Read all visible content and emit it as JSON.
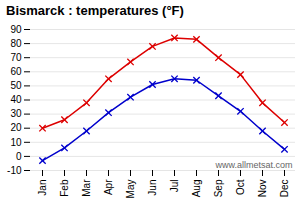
{
  "chart_data": {
    "type": "line",
    "title": "Bismarck : temperatures (°F)",
    "categories": [
      "Jan",
      "Feb",
      "Mar",
      "Apr",
      "May",
      "Jun",
      "Jul",
      "Aug",
      "Sep",
      "Oct",
      "Nov",
      "Dec"
    ],
    "series": [
      {
        "color": "#dd0000",
        "marker": "x",
        "values": [
          20,
          26,
          38,
          55,
          67,
          78,
          84,
          83,
          70,
          58,
          38,
          24
        ]
      },
      {
        "color": "#0000cc",
        "marker": "x",
        "values": [
          -3,
          6,
          18,
          31,
          42,
          51,
          55,
          54,
          43,
          32,
          18,
          5
        ]
      }
    ],
    "ylim": [
      -10,
      90
    ],
    "yticks": [
      -10,
      0,
      10,
      20,
      30,
      40,
      50,
      60,
      70,
      80,
      90
    ],
    "grid": true,
    "annotations": [
      "www.allmetsat.com"
    ]
  }
}
